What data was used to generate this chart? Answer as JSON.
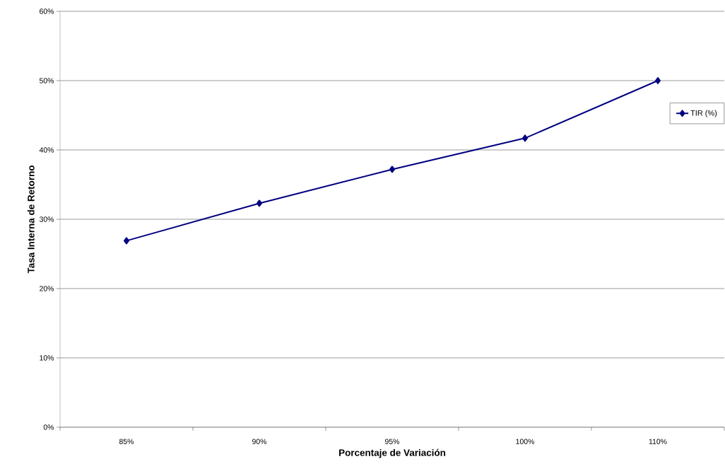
{
  "chart_data": {
    "type": "line",
    "xlabel": "Porcentaje de Variación",
    "ylabel": "Tasa Interna de Retorno",
    "categories": [
      "85%",
      "90%",
      "95%",
      "100%",
      "110%"
    ],
    "series": [
      {
        "name": "TIR (%)",
        "color": "#000080",
        "values": [
          26.9,
          32.3,
          37.2,
          41.7,
          50.0
        ]
      }
    ],
    "ylim": [
      0,
      60
    ],
    "yticks": [
      {
        "value": 0,
        "label": "0%"
      },
      {
        "value": 10,
        "label": "10%"
      },
      {
        "value": 20,
        "label": "20%"
      },
      {
        "value": 30,
        "label": "30%"
      },
      {
        "value": 40,
        "label": "40%"
      },
      {
        "value": 50,
        "label": "50%"
      },
      {
        "value": 60,
        "label": "60%"
      }
    ],
    "grid": "y",
    "legend": "right",
    "marker": "diamond",
    "line_style": "solid"
  }
}
